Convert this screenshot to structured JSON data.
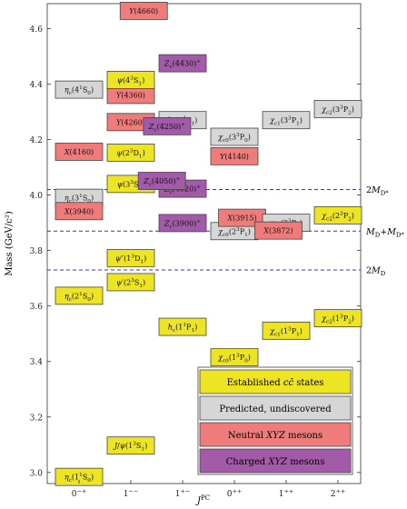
{
  "chart_data": {
    "type": "level-diagram",
    "ylabel": "Mass (GeV/c²)",
    "xlabel": "J^PC",
    "ylim": [
      2.96,
      4.69
    ],
    "yticks": [
      3.0,
      3.2,
      3.4,
      3.6,
      3.8,
      4.0,
      4.2,
      4.4,
      4.6
    ],
    "ytick_labels": [
      "3.0",
      "3.2",
      "3.4",
      "3.6",
      "3.8",
      "4.0",
      "4.2",
      "4.4",
      "4.6"
    ],
    "categories": [
      "0⁻⁺",
      "1⁻⁻",
      "1⁺⁻",
      "0⁺⁺",
      "1⁺⁺",
      "2⁺⁺"
    ],
    "categories_markup": [
      [
        [
          "0",
          "n"
        ],
        [
          "−+",
          "sup"
        ]
      ],
      [
        [
          "1",
          "n"
        ],
        [
          "−−",
          "sup"
        ]
      ],
      [
        [
          "1",
          "n"
        ],
        [
          "+−",
          "sup"
        ]
      ],
      [
        [
          "0",
          "n"
        ],
        [
          "++",
          "sup"
        ]
      ],
      [
        [
          "1",
          "n"
        ],
        [
          "++",
          "sup"
        ]
      ],
      [
        [
          "2",
          "n"
        ],
        [
          "++",
          "sup"
        ]
      ]
    ],
    "colors": {
      "established": "#ede424",
      "predicted": "#d6d6d6",
      "neutral": "#ef7b7b",
      "charged": "#a35aa8",
      "threshold": "#3a3a9c",
      "border": "#444444"
    },
    "thresholds": [
      {
        "mass": 4.02,
        "label": [
          [
            "2",
            "n"
          ],
          [
            "M",
            "i"
          ],
          [
            "D*",
            "sub"
          ]
        ]
      },
      {
        "mass": 3.87,
        "label": [
          [
            "M",
            "i"
          ],
          [
            "D",
            "sub"
          ],
          [
            "+",
            "n"
          ],
          [
            "M",
            "i"
          ],
          [
            "D*",
            "sub"
          ]
        ]
      },
      {
        "mass": 3.73,
        "label": [
          [
            "2",
            "n"
          ],
          [
            "M",
            "i"
          ],
          [
            "D",
            "sub"
          ]
        ]
      }
    ],
    "states": [
      {
        "name": "ηc(1¹S0)",
        "jpc": 0,
        "offset": 0,
        "mass": 2.984,
        "type": "established",
        "label": [
          [
            "η",
            "i"
          ],
          [
            "c",
            "sub"
          ],
          [
            "(1",
            "n"
          ],
          [
            "1",
            "sup"
          ],
          [
            "S",
            "n"
          ],
          [
            "0",
            "sub"
          ],
          [
            ")",
            "n"
          ]
        ]
      },
      {
        "name": "ηc(2¹S0)",
        "jpc": 0,
        "offset": 0,
        "mass": 3.637,
        "type": "established",
        "label": [
          [
            "η",
            "i"
          ],
          [
            "c",
            "sub"
          ],
          [
            "(2",
            "n"
          ],
          [
            "1",
            "sup"
          ],
          [
            "S",
            "n"
          ],
          [
            "0",
            "sub"
          ],
          [
            ")",
            "n"
          ]
        ]
      },
      {
        "name": "ηc(3¹S0)",
        "jpc": 0,
        "offset": 0,
        "mass": 3.99,
        "type": "predicted",
        "label": [
          [
            "η",
            "i"
          ],
          [
            "c",
            "sub"
          ],
          [
            "(3",
            "n"
          ],
          [
            "1",
            "sup"
          ],
          [
            "S",
            "n"
          ],
          [
            "0",
            "sub"
          ],
          [
            ")",
            "n"
          ]
        ]
      },
      {
        "name": "ηc(4¹S0)",
        "jpc": 0,
        "offset": 0,
        "mass": 4.38,
        "type": "predicted",
        "label": [
          [
            "η",
            "i"
          ],
          [
            "c",
            "sub"
          ],
          [
            "(4",
            "n"
          ],
          [
            "1",
            "sup"
          ],
          [
            "S",
            "n"
          ],
          [
            "0",
            "sub"
          ],
          [
            ")",
            "n"
          ]
        ]
      },
      {
        "name": "X(3940)",
        "jpc": 0,
        "offset": 0,
        "mass": 3.942,
        "type": "neutral",
        "label": [
          [
            "X",
            "i"
          ],
          [
            "(3940)",
            "n"
          ]
        ]
      },
      {
        "name": "X(4160)",
        "jpc": 0,
        "offset": 0,
        "mass": 4.156,
        "type": "neutral",
        "label": [
          [
            "X",
            "i"
          ],
          [
            "(4160)",
            "n"
          ]
        ]
      },
      {
        "name": "J/ψ(1³S1)",
        "jpc": 1,
        "offset": 0,
        "mass": 3.097,
        "type": "established",
        "label": [
          [
            "J",
            "i"
          ],
          [
            "/",
            "n"
          ],
          [
            "ψ",
            "i"
          ],
          [
            "(1",
            "n"
          ],
          [
            "3",
            "sup"
          ],
          [
            "S",
            "n"
          ],
          [
            "1",
            "sub"
          ],
          [
            ")",
            "n"
          ]
        ]
      },
      {
        "name": "ψ'(2³S1)",
        "jpc": 1,
        "offset": 0,
        "mass": 3.686,
        "type": "established",
        "label": [
          [
            "ψ",
            "i"
          ],
          [
            "′(2",
            "n"
          ],
          [
            "3",
            "sup"
          ],
          [
            "S",
            "n"
          ],
          [
            "1",
            "sub"
          ],
          [
            ")",
            "n"
          ]
        ]
      },
      {
        "name": "ψ''(1³D1)",
        "jpc": 1,
        "offset": 0,
        "mass": 3.773,
        "type": "established",
        "label": [
          [
            "ψ",
            "i"
          ],
          [
            "″(1",
            "n"
          ],
          [
            "3",
            "sup"
          ],
          [
            "D",
            "n"
          ],
          [
            "1",
            "sub"
          ],
          [
            ")",
            "n"
          ]
        ]
      },
      {
        "name": "ψ(3³S1)",
        "jpc": 1,
        "offset": 0,
        "mass": 4.04,
        "type": "established",
        "label": [
          [
            "ψ",
            "i"
          ],
          [
            "(3",
            "n"
          ],
          [
            "3",
            "sup"
          ],
          [
            "S",
            "n"
          ],
          [
            "1",
            "sub"
          ],
          [
            ")",
            "n"
          ]
        ]
      },
      {
        "name": "ψ(2³D1)",
        "jpc": 1,
        "offset": 0,
        "mass": 4.153,
        "type": "established",
        "label": [
          [
            "ψ",
            "i"
          ],
          [
            "(2",
            "n"
          ],
          [
            "3",
            "sup"
          ],
          [
            "D",
            "n"
          ],
          [
            "1",
            "sub"
          ],
          [
            ")",
            "n"
          ]
        ]
      },
      {
        "name": "Y(4260)",
        "jpc": 1,
        "offset": 0,
        "mass": 4.263,
        "type": "neutral",
        "label": [
          [
            "Y",
            "i"
          ],
          [
            "(4260)",
            "n"
          ]
        ]
      },
      {
        "name": "Y(4360)",
        "jpc": 1,
        "offset": 0,
        "mass": 4.361,
        "type": "neutral",
        "label": [
          [
            "Y",
            "i"
          ],
          [
            "(4360)",
            "n"
          ]
        ]
      },
      {
        "name": "ψ(4³S1)",
        "jpc": 1,
        "offset": 0,
        "mass": 4.415,
        "type": "established",
        "label": [
          [
            "ψ",
            "i"
          ],
          [
            "(4",
            "n"
          ],
          [
            "3",
            "sup"
          ],
          [
            "S",
            "n"
          ],
          [
            "1",
            "sub"
          ],
          [
            ")",
            "n"
          ]
        ]
      },
      {
        "name": "Y(4660)",
        "jpc": 1,
        "offset": 0.25,
        "mass": 4.664,
        "type": "neutral",
        "label": [
          [
            "Y",
            "i"
          ],
          [
            "(4660)",
            "n"
          ]
        ]
      },
      {
        "name": "hc(1¹P1)",
        "jpc": 2,
        "offset": 0,
        "mass": 3.525,
        "type": "established",
        "label": [
          [
            "h",
            "i"
          ],
          [
            "c",
            "sub"
          ],
          [
            "(1",
            "n"
          ],
          [
            "1",
            "sup"
          ],
          [
            "P",
            "n"
          ],
          [
            "1",
            "sub"
          ],
          [
            ")",
            "n"
          ]
        ]
      },
      {
        "name": "Zc(3900)⁺",
        "jpc": 2,
        "offset": 0,
        "mass": 3.899,
        "type": "charged",
        "label": [
          [
            "Z",
            "i"
          ],
          [
            "c",
            "sub"
          ],
          [
            "(3900)",
            "n"
          ],
          [
            "+",
            "sup"
          ]
        ]
      },
      {
        "name": "Zc(4020)⁺",
        "jpc": 2,
        "offset": 0,
        "mass": 4.023,
        "type": "charged",
        "label": [
          [
            "Z",
            "i"
          ],
          [
            "c",
            "sub"
          ],
          [
            "(4020)",
            "n"
          ],
          [
            "+",
            "sup"
          ]
        ]
      },
      {
        "name": "Zc(4050)⁺",
        "jpc": 2,
        "offset": -0.4,
        "mass": 4.051,
        "type": "charged",
        "label": [
          [
            "Z",
            "i"
          ],
          [
            "c",
            "sub"
          ],
          [
            "(4050)",
            "n"
          ],
          [
            "+",
            "sup"
          ]
        ]
      },
      {
        "name": "hc(3¹P1)",
        "jpc": 2,
        "offset": 0,
        "mass": 4.27,
        "type": "predicted",
        "label": [
          [
            "h",
            "i"
          ],
          [
            "c",
            "sub"
          ],
          [
            "(3",
            "n"
          ],
          [
            "1",
            "sup"
          ],
          [
            "P",
            "n"
          ],
          [
            "1",
            "sub"
          ],
          [
            ")",
            "n"
          ]
        ]
      },
      {
        "name": "Zc(4250)⁺",
        "jpc": 2,
        "offset": -0.3,
        "mass": 4.248,
        "type": "charged",
        "label": [
          [
            "Z",
            "i"
          ],
          [
            "c",
            "sub"
          ],
          [
            "(4250)",
            "n"
          ],
          [
            "+",
            "sup"
          ]
        ]
      },
      {
        "name": "Zc(4430)⁺",
        "jpc": 2,
        "offset": 0,
        "mass": 4.475,
        "type": "charged",
        "label": [
          [
            "Z",
            "i"
          ],
          [
            "c",
            "sub"
          ],
          [
            "(4430)",
            "n"
          ],
          [
            "+",
            "sup"
          ]
        ]
      },
      {
        "name": "χc0(1³P0)",
        "jpc": 3,
        "offset": 0,
        "mass": 3.415,
        "type": "established",
        "label": [
          [
            "χ",
            "i"
          ],
          [
            "c0",
            "sub"
          ],
          [
            "(1",
            "n"
          ],
          [
            "3",
            "sup"
          ],
          [
            "P",
            "n"
          ],
          [
            "0",
            "sub"
          ],
          [
            ")",
            "n"
          ]
        ]
      },
      {
        "name": "χc0(2³P1)",
        "jpc": 3,
        "offset": 0,
        "mass": 3.87,
        "type": "predicted",
        "label": [
          [
            "χ",
            "i"
          ],
          [
            "c0",
            "sub"
          ],
          [
            "(2",
            "n"
          ],
          [
            "3",
            "sup"
          ],
          [
            "P",
            "n"
          ],
          [
            "1",
            "sub"
          ],
          [
            ")",
            "n"
          ]
        ]
      },
      {
        "name": "X(3915)",
        "jpc": 3,
        "offset": 0.15,
        "mass": 3.918,
        "type": "neutral",
        "label": [
          [
            "X",
            "i"
          ],
          [
            "(3915)",
            "n"
          ]
        ]
      },
      {
        "name": "Y(4140)",
        "jpc": 3,
        "offset": 0,
        "mass": 4.14,
        "type": "neutral",
        "label": [
          [
            "Y",
            "i"
          ],
          [
            "(4140)",
            "n"
          ]
        ]
      },
      {
        "name": "χc0(3³P0)",
        "jpc": 3,
        "offset": 0,
        "mass": 4.21,
        "type": "predicted",
        "label": [
          [
            "χ",
            "i"
          ],
          [
            "c0",
            "sub"
          ],
          [
            "(3",
            "n"
          ],
          [
            "3",
            "sup"
          ],
          [
            "P",
            "n"
          ],
          [
            "0",
            "sub"
          ],
          [
            ")",
            "n"
          ]
        ]
      },
      {
        "name": "χc1(1³P1)",
        "jpc": 4,
        "offset": 0,
        "mass": 3.511,
        "type": "established",
        "label": [
          [
            "χ",
            "i"
          ],
          [
            "c1",
            "sub"
          ],
          [
            "(1",
            "n"
          ],
          [
            "3",
            "sup"
          ],
          [
            "P",
            "n"
          ],
          [
            "1",
            "sub"
          ],
          [
            ")",
            "n"
          ]
        ]
      },
      {
        "name": "χc1(2³P1)",
        "jpc": 4,
        "offset": 0,
        "mass": 3.9,
        "type": "predicted",
        "label": [
          [
            "χ",
            "i"
          ],
          [
            "c1",
            "sub"
          ],
          [
            "(2",
            "n"
          ],
          [
            "3",
            "sup"
          ],
          [
            "P",
            "n"
          ],
          [
            "1",
            "sub"
          ],
          [
            ")",
            "n"
          ]
        ]
      },
      {
        "name": "X(3872)",
        "jpc": 4,
        "offset": -0.15,
        "mass": 3.872,
        "type": "neutral",
        "label": [
          [
            "X",
            "i"
          ],
          [
            "(3872)",
            "n"
          ]
        ]
      },
      {
        "name": "χc1(3³P1)",
        "jpc": 4,
        "offset": 0,
        "mass": 4.27,
        "type": "predicted",
        "label": [
          [
            "χ",
            "i"
          ],
          [
            "c1",
            "sub"
          ],
          [
            "(3",
            "n"
          ],
          [
            "3",
            "sup"
          ],
          [
            "P",
            "n"
          ],
          [
            "1",
            "sub"
          ],
          [
            ")",
            "n"
          ]
        ]
      },
      {
        "name": "χc2(1³P2)",
        "jpc": 5,
        "offset": 0,
        "mass": 3.556,
        "type": "established",
        "label": [
          [
            "χ",
            "i"
          ],
          [
            "c2",
            "sub"
          ],
          [
            "(1",
            "n"
          ],
          [
            "3",
            "sup"
          ],
          [
            "P",
            "n"
          ],
          [
            "2",
            "sub"
          ],
          [
            ")",
            "n"
          ]
        ]
      },
      {
        "name": "χc2(2³P2)",
        "jpc": 5,
        "offset": 0,
        "mass": 3.927,
        "type": "established",
        "label": [
          [
            "χ",
            "i"
          ],
          [
            "c2",
            "sub"
          ],
          [
            "(2",
            "n"
          ],
          [
            "3",
            "sup"
          ],
          [
            "P",
            "n"
          ],
          [
            "2",
            "sub"
          ],
          [
            ")",
            "n"
          ]
        ]
      },
      {
        "name": "χc2(3³P2)",
        "jpc": 5,
        "offset": 0,
        "mass": 4.31,
        "type": "predicted",
        "label": [
          [
            "χ",
            "i"
          ],
          [
            "c2",
            "sub"
          ],
          [
            "(3",
            "n"
          ],
          [
            "3",
            "sup"
          ],
          [
            "P",
            "n"
          ],
          [
            "2",
            "sub"
          ],
          [
            ")",
            "n"
          ]
        ]
      }
    ],
    "legend": {
      "placement": "bottom-right",
      "entries": [
        {
          "type": "established",
          "text": "Established cc̄ states",
          "markup": [
            [
              "Established ",
              "n"
            ],
            [
              "cc̄",
              "i"
            ],
            [
              " states",
              "n"
            ]
          ]
        },
        {
          "type": "predicted",
          "text": "Predicted, undiscovered",
          "markup": [
            [
              "Predicted, undiscovered",
              "n"
            ]
          ]
        },
        {
          "type": "neutral",
          "text": "Neutral XYZ mesons",
          "markup": [
            [
              "Neutral ",
              "n"
            ],
            [
              "XYZ",
              "i"
            ],
            [
              " mesons",
              "n"
            ]
          ]
        },
        {
          "type": "charged",
          "text": "Charged XYZ mesons",
          "markup": [
            [
              "Charged ",
              "n"
            ],
            [
              "XYZ",
              "i"
            ],
            [
              " mesons",
              "n"
            ]
          ]
        }
      ]
    }
  }
}
